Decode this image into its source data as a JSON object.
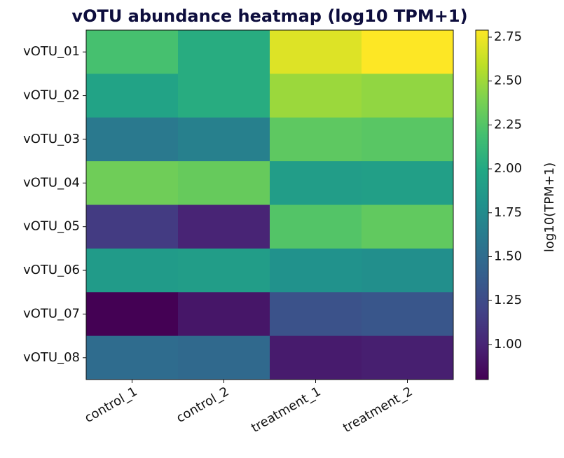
{
  "chart_data": {
    "type": "heatmap",
    "title": "vOTU abundance heatmap (log10 TPM+1)",
    "rows": [
      "vOTU_01",
      "vOTU_02",
      "vOTU_03",
      "vOTU_04",
      "vOTU_05",
      "vOTU_06",
      "vOTU_07",
      "vOTU_08"
    ],
    "columns": [
      "control_1",
      "control_2",
      "treatment_1",
      "treatment_2"
    ],
    "values": [
      [
        2.2,
        2.03,
        2.69,
        2.79
      ],
      [
        1.95,
        2.03,
        2.49,
        2.46
      ],
      [
        1.6,
        1.66,
        2.29,
        2.27
      ],
      [
        2.35,
        2.32,
        1.9,
        1.92
      ],
      [
        1.14,
        1.0,
        2.25,
        2.3
      ],
      [
        1.88,
        1.9,
        1.8,
        1.78
      ],
      [
        0.8,
        0.92,
        1.3,
        1.33
      ],
      [
        1.5,
        1.48,
        0.95,
        0.97
      ]
    ],
    "colormap": "viridis",
    "clim": [
      0.8,
      2.79
    ],
    "colorbar_label": "log10(TPM+1)",
    "colorbar_ticks": [
      {
        "value": 1,
        "label": "1.00"
      },
      {
        "value": 1.25,
        "label": "1.25"
      },
      {
        "value": 1.5,
        "label": "1.50"
      },
      {
        "value": 1.75,
        "label": "1.75"
      },
      {
        "value": 2,
        "label": "2.00"
      },
      {
        "value": 2.25,
        "label": "2.25"
      },
      {
        "value": 2.5,
        "label": "2.50"
      },
      {
        "value": 2.75,
        "label": "2.75"
      }
    ]
  }
}
